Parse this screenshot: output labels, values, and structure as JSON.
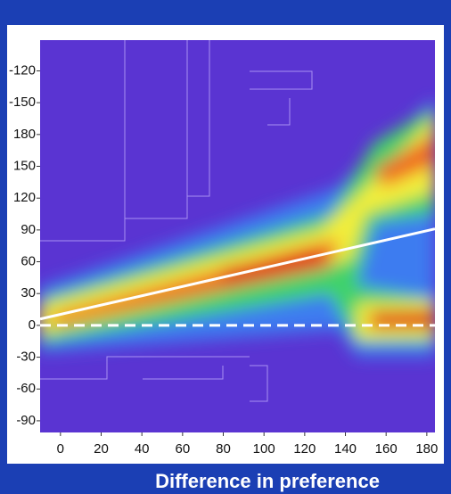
{
  "chart_data": {
    "type": "heatmap",
    "xlabel": "Difference in preference",
    "xlim": [
      -10,
      184
    ],
    "xticks": [
      0,
      20,
      40,
      60,
      80,
      100,
      120,
      140,
      160,
      180
    ],
    "ylim": [
      -101,
      269
    ],
    "yticks": [
      -90,
      -60,
      -30,
      0,
      30,
      60,
      90,
      120,
      150,
      180,
      {
        "value": 210,
        "label": "-150"
      },
      {
        "value": 240,
        "label": "-120"
      }
    ],
    "lines": [
      {
        "x": [
          -10,
          184
        ],
        "y": [
          6,
          91
        ],
        "color": "#ffffff",
        "dashed": false
      },
      {
        "x": [
          -10,
          184
        ],
        "y": [
          0,
          0
        ],
        "color": "#ffffff",
        "dashed": true
      }
    ]
  }
}
